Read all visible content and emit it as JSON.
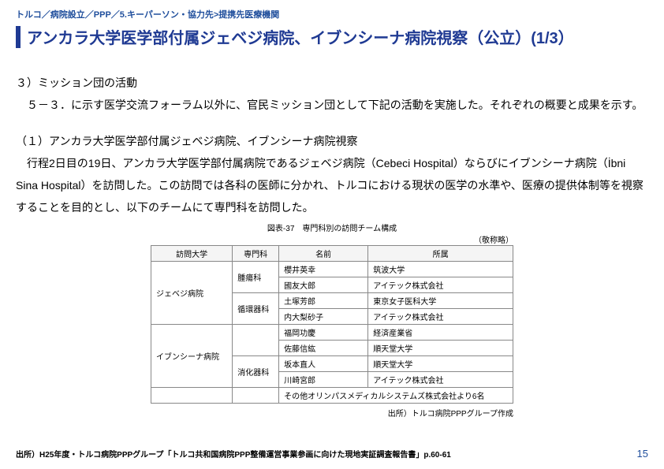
{
  "breadcrumb": "トルコ／病院設立／PPP／5.キーパーソン・協力先>提携先医療機関",
  "title": "アンカラ大学医学部付属ジェベジ病院、イブンシーナ病院視察（公立）(1/3）",
  "body": {
    "sec_head": "３）ミッション団の活動",
    "p1": "５－３．に示す医学交流フォーラム以外に、官民ミッション団として下記の活動を実施した。それぞれの概要と成果を示す。",
    "sub_head": "（１）アンカラ大学医学部付属ジェベジ病院、イブンシーナ病院視察",
    "p2": "行程2日目の19日、アンカラ大学医学部付属病院であるジェベジ病院（Cebeci Hospital）ならびにイブンシーナ病院（İbni Sina Hospital）を訪問した。この訪問では各科の医師に分かれ、トルコにおける現状の医学の水準や、医療の提供体制等を視察することを目的とし、以下のチームにて専門科を訪問した。"
  },
  "figure": {
    "caption": "図表-37　専門科別の訪問チーム構成",
    "right_note": "（敬称略）",
    "headers": [
      "訪問大学",
      "専門科",
      "名前",
      "所属"
    ],
    "groups": [
      {
        "hospital": "ジェベジ病院",
        "depts": [
          {
            "dept": "腫瘍科",
            "rows": [
              {
                "name": "櫻井英幸",
                "aff": "筑波大学"
              },
              {
                "name": "國友大郎",
                "aff": "アイテック株式会社"
              }
            ]
          },
          {
            "dept": "循環器科",
            "rows": [
              {
                "name": "土塚芳郎",
                "aff": "東京女子医科大学"
              },
              {
                "name": "内大梨砂子",
                "aff": "アイテック株式会社"
              }
            ]
          }
        ]
      },
      {
        "hospital": "イブンシーナ病院",
        "depts": [
          {
            "dept": "",
            "rows": [
              {
                "name": "福岡功慶",
                "aff": "経済産業省"
              },
              {
                "name": "佐藤信紘",
                "aff": "順天堂大学"
              }
            ]
          },
          {
            "dept": "消化器科",
            "rows": [
              {
                "name": "坂本直人",
                "aff": "順天堂大学"
              },
              {
                "name": "川崎宮郎",
                "aff": "アイテック株式会社"
              }
            ]
          }
        ]
      }
    ],
    "footer_row": "その他オリンパスメディカルシステムズ株式会社より6名",
    "source": "出所）トルコ病院PPPグループ作成"
  },
  "source_line": "出所）H25年度・トルコ病院PPPグループ「トルコ共和国病院PPP整備運営事業参画に向けた現地実証調査報告書」p.60-61",
  "page_no": "15"
}
